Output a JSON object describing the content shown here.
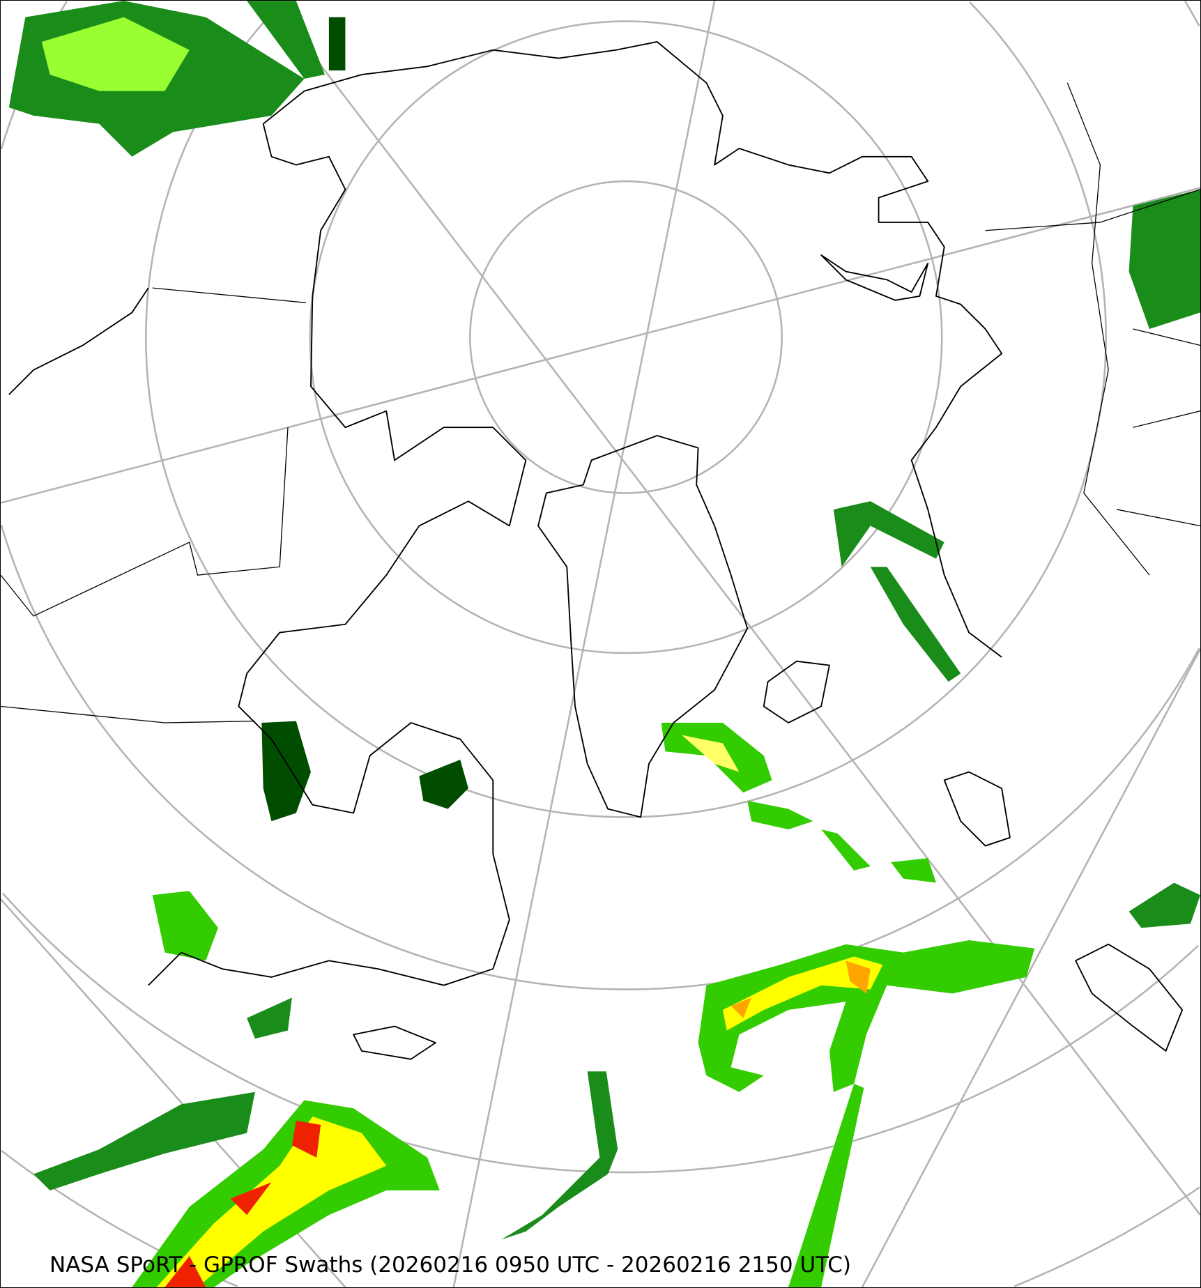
{
  "caption": "NASA SPoRT - GPROF Swaths (20260216 0950 UTC - 20260216 2150 UTC)",
  "map": {
    "projection": "north-polar-stereographic",
    "graticule_color": "#b4b4b4",
    "coastline_color": "#000000",
    "precip_colors": [
      "#004d00",
      "#1a8c1a",
      "#33cc00",
      "#99ff33",
      "#ffff00",
      "#ffa500",
      "#ff4500",
      "#dd0000"
    ]
  }
}
